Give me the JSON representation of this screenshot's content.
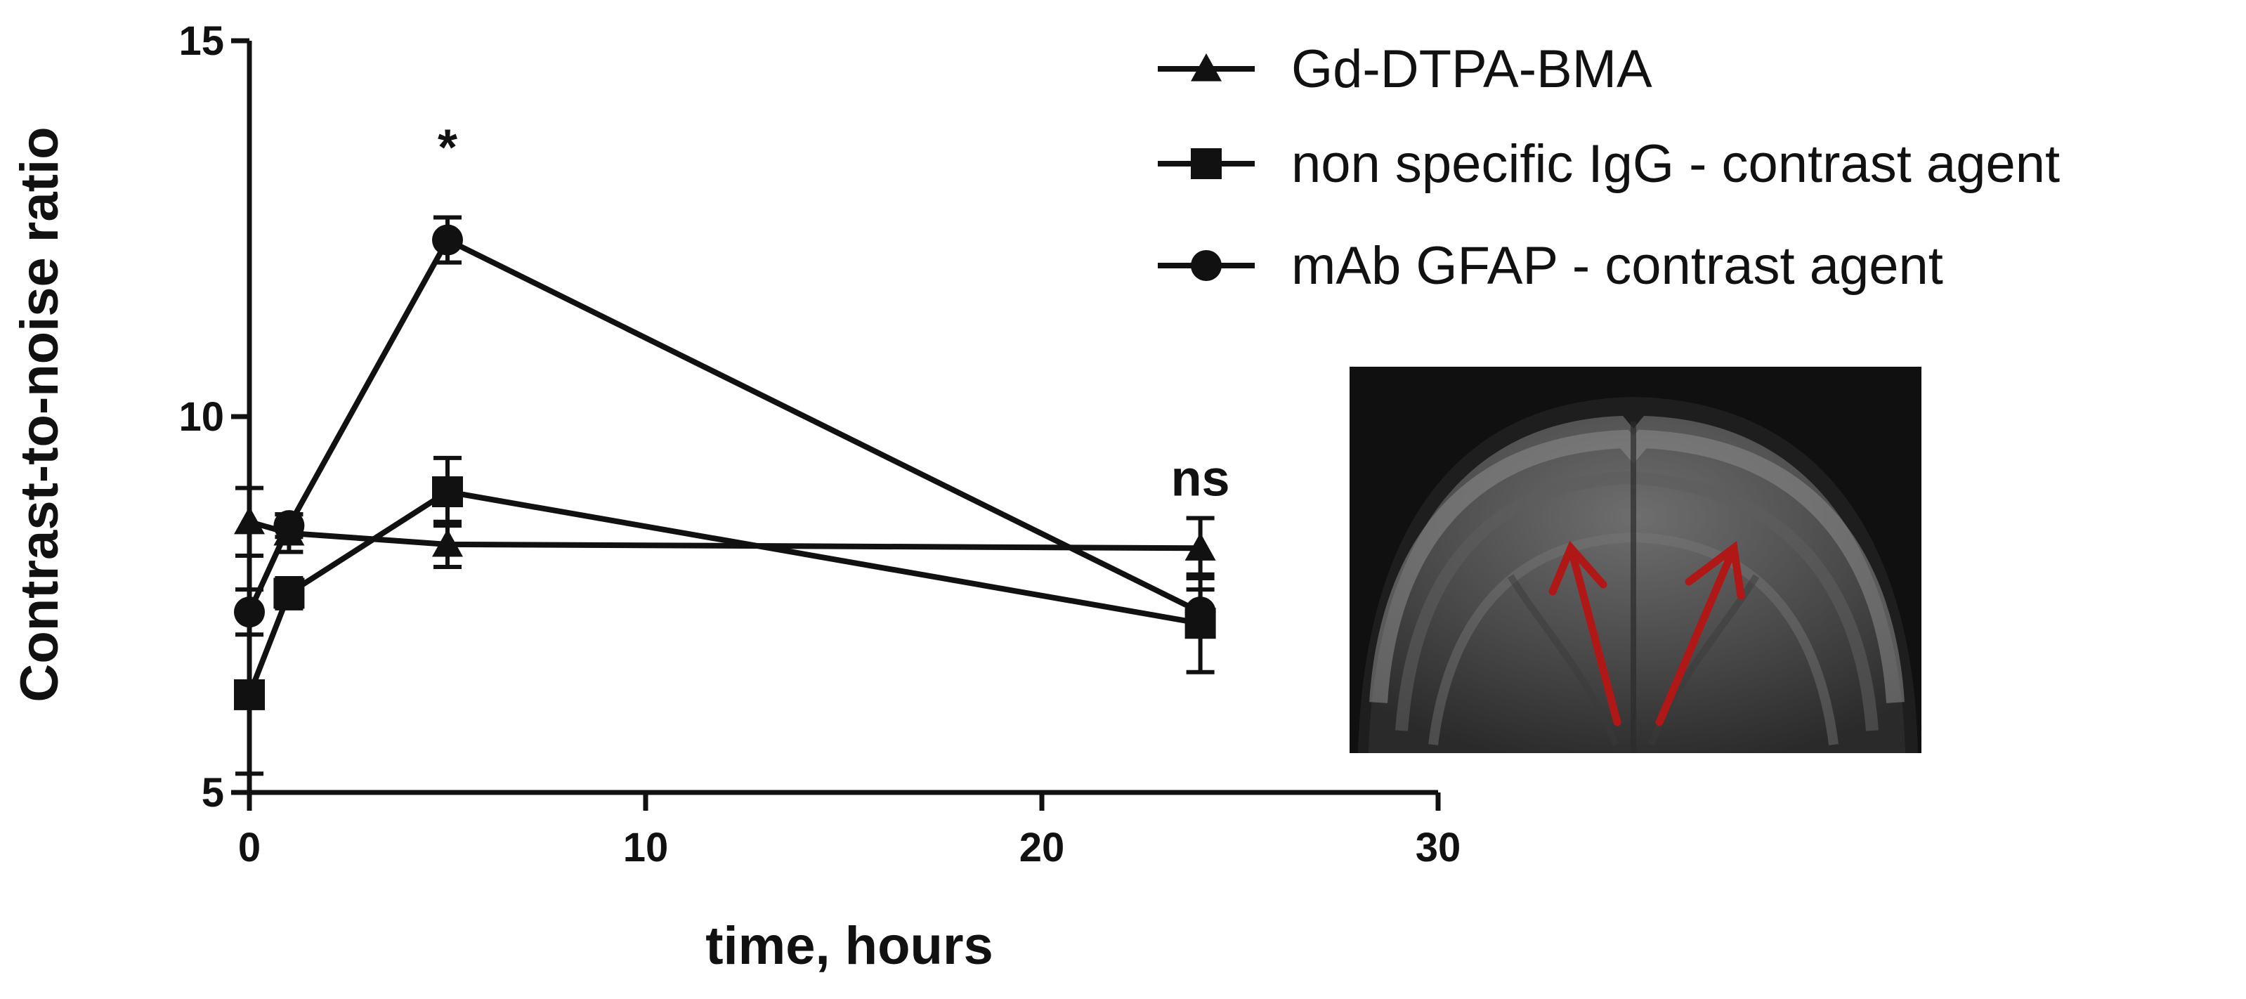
{
  "chart_data": {
    "type": "line",
    "xlabel": "time, hours",
    "ylabel": "Contrast-to-noise ratio",
    "xlim": [
      0,
      30
    ],
    "ylim": [
      5,
      15
    ],
    "xticks": [
      0,
      10,
      20,
      30
    ],
    "yticks": [
      5,
      10,
      15
    ],
    "x_tick_labels": [
      "0",
      "10",
      "20",
      "30"
    ],
    "y_tick_labels": [
      "5",
      "10",
      "15"
    ],
    "legend_position": "top-right",
    "grid": false,
    "series": [
      {
        "name": "Gd-DTPA-BMA",
        "marker": "triangle",
        "points": [
          {
            "x": 0,
            "y": 8.6,
            "err": 0.45
          },
          {
            "x": 1,
            "y": 8.45,
            "err": 0.25
          },
          {
            "x": 5,
            "y": 8.3,
            "err": 0.3
          },
          {
            "x": 24,
            "y": 8.25,
            "err": 0.4
          }
        ]
      },
      {
        "name": "non specific IgG - contrast agent",
        "marker": "square",
        "points": [
          {
            "x": 0,
            "y": 6.3,
            "err": 1.05
          },
          {
            "x": 1,
            "y": 7.65,
            "err": 0.2
          },
          {
            "x": 5,
            "y": 9.0,
            "err": 0.45
          },
          {
            "x": 24,
            "y": 7.25,
            "err": 0.65
          }
        ]
      },
      {
        "name": "mAb GFAP - contrast agent",
        "marker": "circle",
        "points": [
          {
            "x": 0,
            "y": 7.4,
            "err": 0.3
          },
          {
            "x": 1,
            "y": 8.55,
            "err": 0.15
          },
          {
            "x": 5,
            "y": 12.35,
            "err": 0.3
          },
          {
            "x": 24,
            "y": 7.4,
            "err": 0.3
          }
        ]
      }
    ],
    "annotations": [
      {
        "text": "*",
        "x": 5
      },
      {
        "text": "ns",
        "x": 24
      }
    ]
  },
  "inset": {
    "description_icon": "brain-mri-coronal-slice-with-red-arrows",
    "arrow_color": "#b01818"
  }
}
